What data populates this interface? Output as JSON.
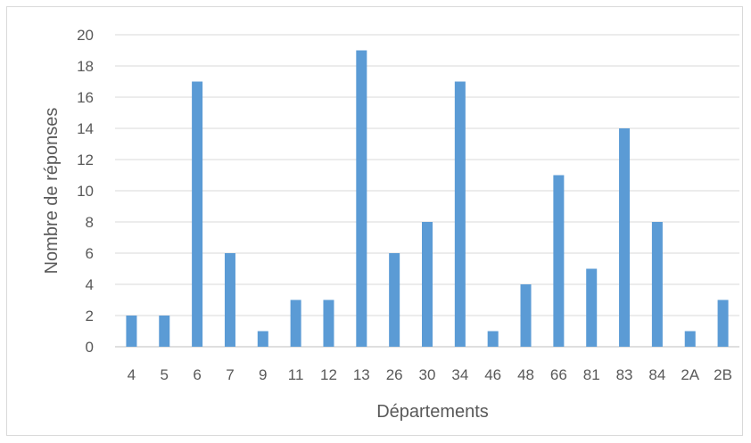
{
  "chart_data": {
    "type": "bar",
    "categories": [
      "4",
      "5",
      "6",
      "7",
      "9",
      "11",
      "12",
      "13",
      "26",
      "30",
      "34",
      "46",
      "48",
      "66",
      "81",
      "83",
      "84",
      "2A",
      "2B"
    ],
    "values": [
      2,
      2,
      17,
      6,
      1,
      3,
      3,
      19,
      6,
      8,
      17,
      1,
      4,
      11,
      5,
      14,
      8,
      1,
      3
    ],
    "xlabel": "Départements",
    "ylabel": "Nombre de réponses",
    "ylim": [
      0,
      20
    ],
    "yticks": [
      0,
      2,
      4,
      6,
      8,
      10,
      12,
      14,
      16,
      18,
      20
    ],
    "grid": true,
    "bar_color": "#5b9bd5",
    "grid_color": "#d9d9d9"
  }
}
